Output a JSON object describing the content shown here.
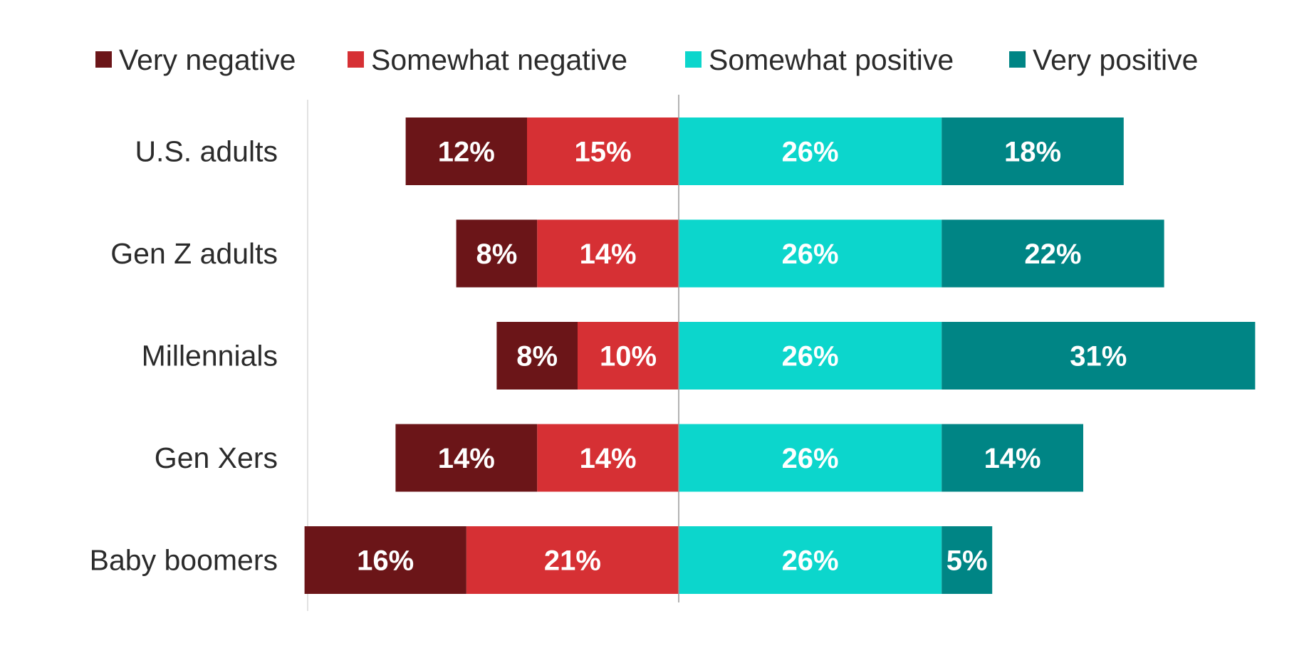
{
  "chart_data": {
    "type": "bar",
    "orientation": "horizontal",
    "stacking": "diverging",
    "legend_position": "top",
    "grid": false,
    "title": "",
    "xlabel": "",
    "ylabel": "",
    "categories": [
      "U.S. adults",
      "Gen Z adults",
      "Millennials",
      "Gen Xers",
      "Baby boomers"
    ],
    "series": [
      {
        "name": "Very negative",
        "side": "negative",
        "color": "#6b1518",
        "values": [
          12,
          8,
          8,
          14,
          16
        ],
        "labels": [
          "12%",
          "8%",
          "8%",
          "14%",
          "16%"
        ]
      },
      {
        "name": "Somewhat negative",
        "side": "negative",
        "color": "#d63034",
        "values": [
          15,
          14,
          10,
          14,
          21
        ],
        "labels": [
          "15%",
          "14%",
          "10%",
          "14%",
          "21%"
        ]
      },
      {
        "name": "Somewhat positive",
        "side": "positive",
        "color": "#0cd6cc",
        "values": [
          26,
          26,
          26,
          26,
          26
        ],
        "labels": [
          "26%",
          "26%",
          "26%",
          "26%",
          "26%"
        ]
      },
      {
        "name": "Very positive",
        "side": "positive",
        "color": "#008585",
        "values": [
          18,
          22,
          31,
          14,
          5
        ],
        "labels": [
          "18%",
          "22%",
          "31%",
          "14%",
          "5%"
        ]
      }
    ],
    "axis_line_color": "#9a9a9a",
    "text_color": "#2b2b2b"
  }
}
